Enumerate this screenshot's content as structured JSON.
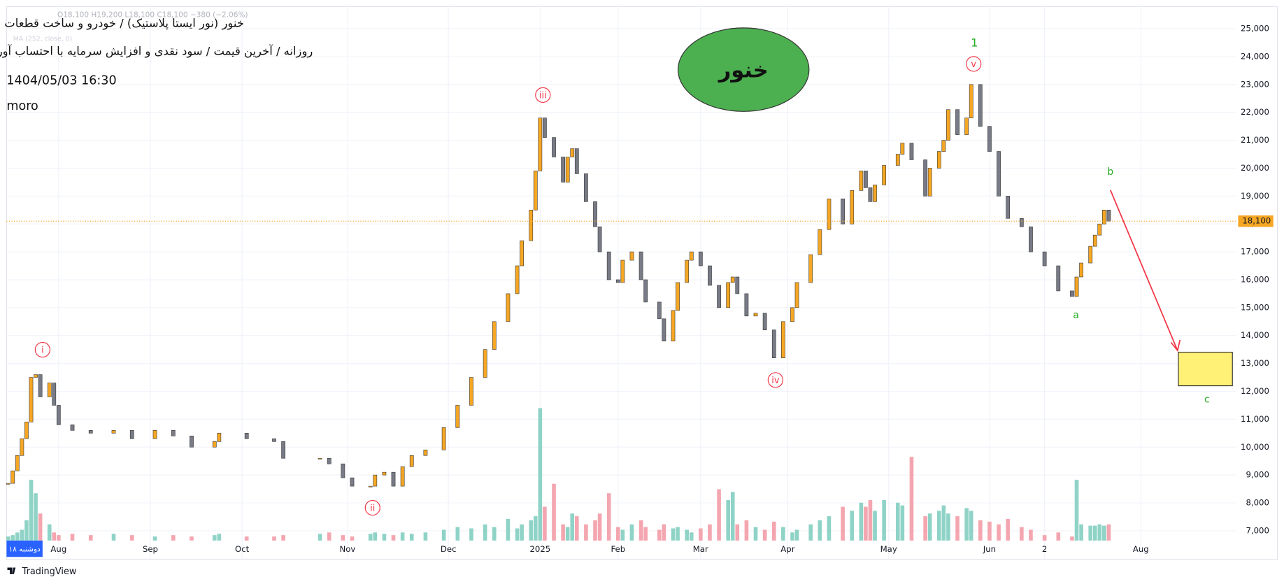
{
  "chart_data": {
    "type": "candlestick",
    "title": "خنور (نور ایستا پلاستیک) / خودرو و ساخت قطعات",
    "subtitle": "روزانه / آخرین قیمت / سود نقدی و افزایش سرمایه با احتساب آورده",
    "datetime": "1404/05/03 16:30",
    "author": "moro",
    "badge": "خنور",
    "ohlc_text": "O18,100 H19,200 L18,100 C18,100 −380 (−2.06%)",
    "indicator_text": "MA (252, close, 0)",
    "date_tag": "دوشنبه ۱۸",
    "logo": "TradingView",
    "wave_labels": [
      "i",
      "ii",
      "iii",
      "iv",
      "v"
    ],
    "abc_labels": [
      "1",
      "a",
      "b",
      "c"
    ],
    "last_price": {
      "value": 18100,
      "label": "18,100"
    },
    "ylim": [
      7000,
      25000
    ],
    "yticks": [
      {
        "value": 7000,
        "label": "7,000"
      },
      {
        "value": 8000,
        "label": "8,000"
      },
      {
        "value": 9000,
        "label": "9,000"
      },
      {
        "value": 10000,
        "label": "10,000"
      },
      {
        "value": 11000,
        "label": "11,000"
      },
      {
        "value": 12000,
        "label": "12,000"
      },
      {
        "value": 13000,
        "label": "13,000"
      },
      {
        "value": 14000,
        "label": "14,000"
      },
      {
        "value": 15000,
        "label": "15,000"
      },
      {
        "value": 16000,
        "label": "16,000"
      },
      {
        "value": 17000,
        "label": "17,000"
      },
      {
        "value": 18000,
        "label": "18,000"
      },
      {
        "value": 19000,
        "label": "19,000"
      },
      {
        "value": 20000,
        "label": "20,000"
      },
      {
        "value": 21000,
        "label": "21,000"
      },
      {
        "value": 22000,
        "label": "22,000"
      },
      {
        "value": 23000,
        "label": "23,000"
      },
      {
        "value": 24000,
        "label": "24,000"
      },
      {
        "value": 25000,
        "label": "25,000"
      }
    ],
    "xticks": [
      {
        "value": 11,
        "label": "Aug"
      },
      {
        "value": 31,
        "label": "Sep"
      },
      {
        "value": 51,
        "label": "Oct"
      },
      {
        "value": 74,
        "label": "Nov"
      },
      {
        "value": 96,
        "label": "Dec"
      },
      {
        "value": 116,
        "label": "2025"
      },
      {
        "value": 133,
        "label": "Feb"
      },
      {
        "value": 151,
        "label": "Mar"
      },
      {
        "value": 170,
        "label": "Apr"
      },
      {
        "value": 192,
        "label": "May"
      },
      {
        "value": 214,
        "label": "Jun"
      },
      {
        "value": 226,
        "label": "2"
      },
      {
        "value": 247,
        "label": "Aug"
      }
    ],
    "volume_lim": [
      0,
      100
    ],
    "up_color": "#f5a623",
    "down_color": "#787b86",
    "vol_up_color": "#8fd3c7",
    "vol_down_color": "#f4a6b0",
    "candles": [
      {
        "x": 0,
        "close": 8700,
        "volume": 3
      },
      {
        "x": 1,
        "close": 9150,
        "volume": 4
      },
      {
        "x": 2,
        "close": 9700,
        "volume": 6
      },
      {
        "x": 3,
        "close": 10300,
        "volume": 8
      },
      {
        "x": 4,
        "close": 10900,
        "volume": 15
      },
      {
        "x": 5,
        "close": 12500,
        "volume": 45
      },
      {
        "x": 6,
        "close": 12600,
        "volume": 35
      },
      {
        "x": 7,
        "close": 11800,
        "volume": 20
      },
      {
        "x": 9,
        "close": 12300,
        "volume": 12
      },
      {
        "x": 10,
        "close": 11500,
        "volume": 6
      },
      {
        "x": 11,
        "close": 10800,
        "volume": 4
      },
      {
        "x": 14,
        "close": 10600,
        "volume": 5
      },
      {
        "x": 18,
        "close": 10500,
        "volume": 4
      },
      {
        "x": 23,
        "close": 10600,
        "volume": 5
      },
      {
        "x": 27,
        "close": 10300,
        "volume": 4
      },
      {
        "x": 32,
        "close": 10600,
        "volume": 3
      },
      {
        "x": 36,
        "close": 10400,
        "volume": 4
      },
      {
        "x": 40,
        "close": 10000,
        "volume": 3
      },
      {
        "x": 45,
        "close": 10200,
        "volume": 4
      },
      {
        "x": 46,
        "close": 10500,
        "volume": 5
      },
      {
        "x": 52,
        "close": 10300,
        "volume": 3
      },
      {
        "x": 58,
        "close": 10200,
        "volume": 3
      },
      {
        "x": 60,
        "close": 9600,
        "volume": 4
      },
      {
        "x": 68,
        "close": 9600,
        "volume": 5
      },
      {
        "x": 70,
        "close": 9400,
        "volume": 6
      },
      {
        "x": 73,
        "close": 8900,
        "volume": 4
      },
      {
        "x": 75,
        "close": 8600,
        "volume": 3
      },
      {
        "x": 79,
        "close": 8600,
        "volume": 5
      },
      {
        "x": 80,
        "close": 9000,
        "volume": 6
      },
      {
        "x": 82,
        "close": 9100,
        "volume": 5
      },
      {
        "x": 84,
        "close": 8600,
        "volume": 4
      },
      {
        "x": 86,
        "close": 9300,
        "volume": 6
      },
      {
        "x": 88,
        "close": 9700,
        "volume": 5
      },
      {
        "x": 91,
        "close": 9900,
        "volume": 6
      },
      {
        "x": 95,
        "close": 10700,
        "volume": 8
      },
      {
        "x": 98,
        "close": 11500,
        "volume": 10
      },
      {
        "x": 101,
        "close": 12500,
        "volume": 9
      },
      {
        "x": 104,
        "close": 13500,
        "volume": 12
      },
      {
        "x": 106,
        "close": 14500,
        "volume": 10
      },
      {
        "x": 109,
        "close": 15500,
        "volume": 16
      },
      {
        "x": 111,
        "close": 16500,
        "volume": 9
      },
      {
        "x": 112,
        "close": 17400,
        "volume": 12
      },
      {
        "x": 114,
        "close": 18500,
        "volume": 15
      },
      {
        "x": 115,
        "close": 19900,
        "volume": 18
      },
      {
        "x": 116,
        "close": 21800,
        "volume": 98
      },
      {
        "x": 117,
        "close": 21100,
        "volume": 25
      },
      {
        "x": 119,
        "close": 20400,
        "volume": 42
      },
      {
        "x": 121,
        "close": 19500,
        "volume": 12
      },
      {
        "x": 122,
        "close": 20400,
        "volume": 10
      },
      {
        "x": 123,
        "close": 20700,
        "volume": 20
      },
      {
        "x": 124,
        "close": 19800,
        "volume": 18
      },
      {
        "x": 126,
        "close": 18800,
        "volume": 12
      },
      {
        "x": 128,
        "close": 17900,
        "volume": 15
      },
      {
        "x": 129,
        "close": 17000,
        "volume": 20
      },
      {
        "x": 131,
        "close": 16000,
        "volume": 35
      },
      {
        "x": 133,
        "close": 15900,
        "volume": 10
      },
      {
        "x": 134,
        "close": 16700,
        "volume": 8
      },
      {
        "x": 136,
        "close": 17000,
        "volume": 12
      },
      {
        "x": 138,
        "close": 16000,
        "volume": 15
      },
      {
        "x": 139,
        "close": 15200,
        "volume": 10
      },
      {
        "x": 142,
        "close": 14600,
        "volume": 8
      },
      {
        "x": 143,
        "close": 13800,
        "volume": 12
      },
      {
        "x": 145,
        "close": 14900,
        "volume": 9
      },
      {
        "x": 146,
        "close": 15900,
        "volume": 10
      },
      {
        "x": 148,
        "close": 16700,
        "volume": 8
      },
      {
        "x": 149,
        "close": 17000,
        "volume": 6
      },
      {
        "x": 151,
        "close": 16500,
        "volume": 9
      },
      {
        "x": 153,
        "close": 15800,
        "volume": 12
      },
      {
        "x": 155,
        "close": 15000,
        "volume": 38
      },
      {
        "x": 157,
        "close": 15900,
        "volume": 30
      },
      {
        "x": 158,
        "close": 16100,
        "volume": 36
      },
      {
        "x": 159,
        "close": 15500,
        "volume": 12
      },
      {
        "x": 161,
        "close": 14700,
        "volume": 15
      },
      {
        "x": 163,
        "close": 14800,
        "volume": 10
      },
      {
        "x": 165,
        "close": 14200,
        "volume": 8
      },
      {
        "x": 167,
        "close": 13200,
        "volume": 14
      },
      {
        "x": 169,
        "close": 14500,
        "volume": 10
      },
      {
        "x": 171,
        "close": 15000,
        "volume": 6
      },
      {
        "x": 172,
        "close": 15900,
        "volume": 8
      },
      {
        "x": 175,
        "close": 16900,
        "volume": 12
      },
      {
        "x": 177,
        "close": 17800,
        "volume": 15
      },
      {
        "x": 179,
        "close": 18900,
        "volume": 18
      },
      {
        "x": 182,
        "close": 18000,
        "volume": 25
      },
      {
        "x": 184,
        "close": 19200,
        "volume": 22
      },
      {
        "x": 186,
        "close": 19900,
        "volume": 28
      },
      {
        "x": 187,
        "close": 19300,
        "volume": 25
      },
      {
        "x": 188,
        "close": 18800,
        "volume": 30
      },
      {
        "x": 189,
        "close": 19400,
        "volume": 22
      },
      {
        "x": 191,
        "close": 20100,
        "volume": 30
      },
      {
        "x": 194,
        "close": 20500,
        "volume": 28
      },
      {
        "x": 195,
        "close": 20900,
        "volume": 26
      },
      {
        "x": 197,
        "close": 20300,
        "volume": 62
      },
      {
        "x": 200,
        "close": 19000,
        "volume": 18
      },
      {
        "x": 201,
        "close": 20000,
        "volume": 20
      },
      {
        "x": 203,
        "close": 20600,
        "volume": 22
      },
      {
        "x": 204,
        "close": 21000,
        "volume": 26
      },
      {
        "x": 205,
        "close": 22100,
        "volume": 20
      },
      {
        "x": 207,
        "close": 21200,
        "volume": 18
      },
      {
        "x": 209,
        "close": 21800,
        "volume": 24
      },
      {
        "x": 210,
        "close": 23000,
        "volume": 22
      },
      {
        "x": 212,
        "close": 21500,
        "volume": 15
      },
      {
        "x": 214,
        "close": 20600,
        "volume": 14
      },
      {
        "x": 216,
        "close": 19000,
        "volume": 12
      },
      {
        "x": 218,
        "close": 18200,
        "volume": 16
      },
      {
        "x": 221,
        "close": 17900,
        "volume": 10
      },
      {
        "x": 223,
        "close": 17000,
        "volume": 8
      },
      {
        "x": 226,
        "close": 16500,
        "volume": 4
      },
      {
        "x": 229,
        "close": 15600,
        "volume": 6
      },
      {
        "x": 232,
        "close": 15400,
        "volume": 3
      },
      {
        "x": 233,
        "close": 16100,
        "volume": 45
      },
      {
        "x": 234,
        "close": 16600,
        "volume": 12
      },
      {
        "x": 236,
        "close": 17200,
        "volume": 11
      },
      {
        "x": 237,
        "close": 17600,
        "volume": 11
      },
      {
        "x": 238,
        "close": 18000,
        "volume": 12
      },
      {
        "x": 239,
        "close": 18500,
        "volume": 11
      },
      {
        "x": 240,
        "close": 18100,
        "volume": 12
      }
    ]
  }
}
